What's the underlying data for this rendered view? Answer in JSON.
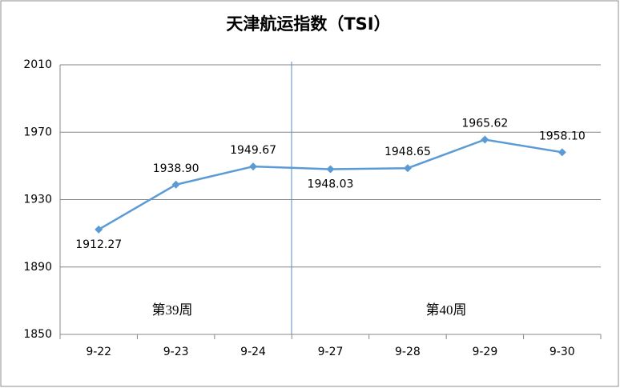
{
  "chart_data": {
    "type": "line",
    "title": "天津航运指数（TSI）",
    "categories": [
      "9-22",
      "9-23",
      "9-24",
      "9-27",
      "9-28",
      "9-29",
      "9-30"
    ],
    "values": [
      1912.27,
      1938.9,
      1949.67,
      1948.03,
      1948.65,
      1965.62,
      1958.1
    ],
    "value_labels": [
      "1912.27",
      "1938.90",
      "1949.67",
      "1948.03",
      "1948.65",
      "1965.62",
      "1958.10"
    ],
    "color": "#5b9bd5",
    "ylim": [
      1850,
      2010
    ],
    "yticks": [
      1850,
      1890,
      1930,
      1970,
      2010
    ],
    "grid": true,
    "annotations": [
      "第39周",
      "第40周"
    ]
  }
}
